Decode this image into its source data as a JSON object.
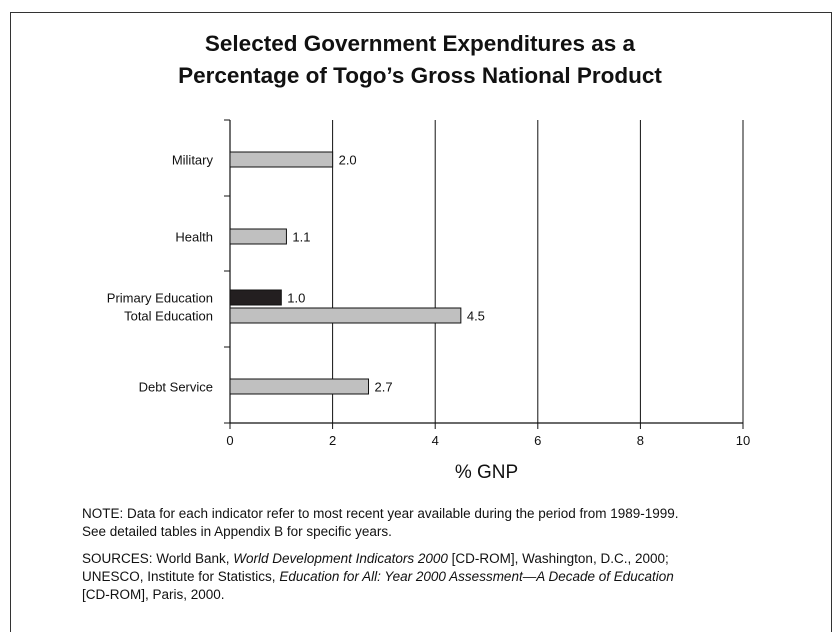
{
  "title_line1": "Selected Government Expenditures as a",
  "title_line2": "Percentage of Togo’s Gross National Product",
  "note_line1": "NOTE: Data for each indicator refer to most recent year available during the period from 1989-1999.",
  "note_line2": "See detailed tables in Appendix B for specific years.",
  "sources": {
    "line1_a": "SOURCES: World Bank, ",
    "line1_b": "World Development Indicators 2000",
    "line1_c": " [CD-ROM], Washington, D.C., 2000;",
    "line2_a": "UNESCO, Institute for Statistics, ",
    "line2_b": "Education for All: Year 2000 Assessment—A Decade of Education",
    "line3": "[CD-ROM], Paris, 2000."
  },
  "colors": {
    "gray_bar": "#c0c0c0",
    "black_bar": "#231f20",
    "axis": "#111111"
  },
  "chart_data": {
    "type": "bar",
    "orientation": "horizontal",
    "xlabel": "% GNP",
    "xlim": [
      0,
      10
    ],
    "xticks": [
      "0",
      "2",
      "4",
      "6",
      "8",
      "10"
    ],
    "grid": true,
    "bars": [
      {
        "category": "Military",
        "value": 2.0,
        "label": "2.0",
        "color": "gray"
      },
      {
        "category": "Health",
        "value": 1.1,
        "label": "1.1",
        "color": "gray"
      },
      {
        "category": "Primary Education",
        "value": 1.0,
        "label": "1.0",
        "color": "black"
      },
      {
        "category": "Total Education",
        "value": 4.5,
        "label": "4.5",
        "color": "gray"
      },
      {
        "category": "Debt Service",
        "value": 2.7,
        "label": "2.7",
        "color": "gray"
      }
    ]
  }
}
